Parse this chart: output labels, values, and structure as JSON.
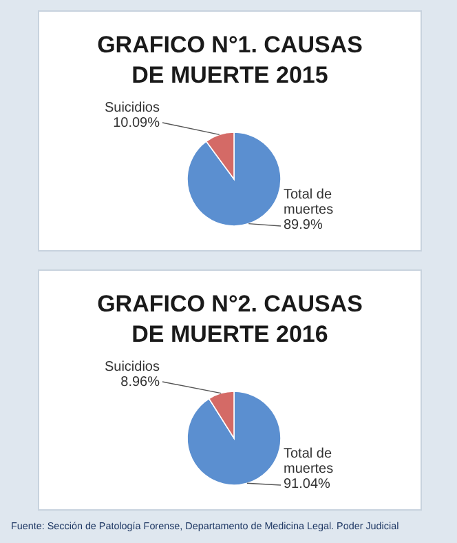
{
  "chart_data": [
    {
      "type": "pie",
      "title": "GRAFICO N°1. CAUSAS DE MUERTE 2015",
      "categories": [
        "Total de muertes",
        "Suicidios"
      ],
      "values": [
        89.9,
        10.09
      ],
      "colors": [
        "#5b8fd0",
        "#d46a66"
      ],
      "value_labels": [
        "89.9%",
        "10.09%"
      ]
    },
    {
      "type": "pie",
      "title": "GRAFICO N°2. CAUSAS DE MUERTE 2016",
      "categories": [
        "Total de muertes",
        "Suicidios"
      ],
      "values": [
        91.04,
        8.96
      ],
      "colors": [
        "#5b8fd0",
        "#d46a66"
      ],
      "value_labels": [
        "91.04%",
        "8.96%"
      ],
      "annotations": [
        "Fuente: Sección de Patología Forense, Departamento de Medicina Legal. Poder Judicial"
      ]
    }
  ]
}
